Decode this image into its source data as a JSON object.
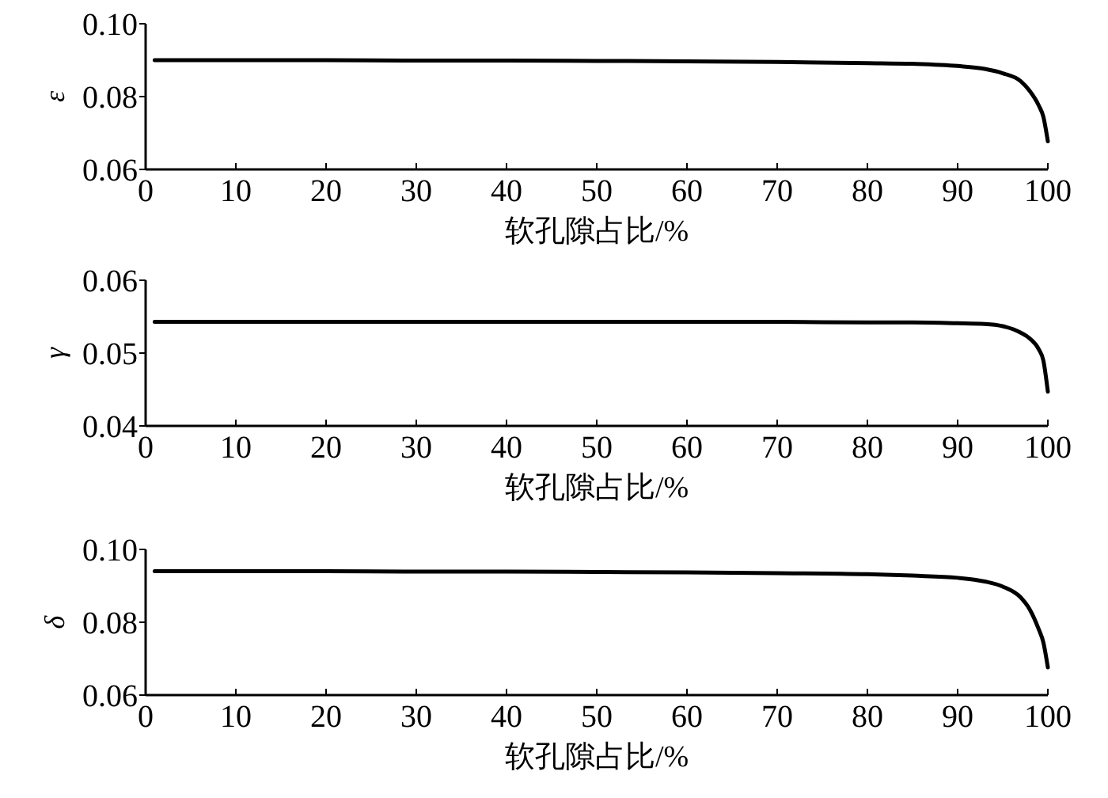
{
  "chart_data": [
    {
      "type": "line",
      "ylabel": "ε",
      "xlabel": "软孔隙占比/%",
      "x": [
        1,
        10,
        20,
        30,
        40,
        50,
        60,
        70,
        80,
        85,
        90,
        93,
        95,
        97,
        98,
        99,
        99.5,
        100
      ],
      "series": [
        {
          "color": "#000000",
          "values": [
            0.09,
            0.09,
            0.09,
            0.0899,
            0.0899,
            0.0898,
            0.0897,
            0.0895,
            0.0892,
            0.089,
            0.0884,
            0.0876,
            0.0864,
            0.0842,
            0.0815,
            0.0775,
            0.0745,
            0.0677
          ]
        }
      ],
      "xlim": [
        0,
        100
      ],
      "xticks": [
        0,
        10,
        20,
        30,
        40,
        50,
        60,
        70,
        80,
        90,
        100
      ],
      "ylim": [
        0.06,
        0.1
      ],
      "yticks": [
        0.06,
        0.08,
        {
          "value": 0.1,
          "label": "0.10"
        }
      ],
      "marker": "none",
      "line_style": "solid"
    },
    {
      "type": "line",
      "ylabel": "γ",
      "xlabel": "软孔隙占比/%",
      "x": [
        1,
        10,
        20,
        30,
        40,
        50,
        60,
        70,
        80,
        85,
        90,
        93,
        95,
        97,
        98,
        99,
        99.5,
        100
      ],
      "series": [
        {
          "color": "#000000",
          "values": [
            0.0543,
            0.0543,
            0.0543,
            0.0543,
            0.0543,
            0.0543,
            0.0543,
            0.0543,
            0.0542,
            0.0542,
            0.0541,
            0.054,
            0.0537,
            0.0528,
            0.052,
            0.0505,
            0.049,
            0.0447
          ]
        }
      ],
      "xlim": [
        0,
        100
      ],
      "xticks": [
        0,
        10,
        20,
        30,
        40,
        50,
        60,
        70,
        80,
        90,
        100
      ],
      "ylim": [
        0.04,
        0.06
      ],
      "yticks": [
        0.04,
        0.05,
        0.06
      ],
      "marker": "none",
      "line_style": "solid"
    },
    {
      "type": "line",
      "ylabel": "δ",
      "xlabel": "软孔隙占比/%",
      "x": [
        1,
        10,
        20,
        30,
        40,
        50,
        60,
        70,
        80,
        85,
        90,
        93,
        95,
        97,
        98,
        99,
        99.5,
        100
      ],
      "series": [
        {
          "color": "#000000",
          "values": [
            0.094,
            0.094,
            0.094,
            0.0939,
            0.0939,
            0.0938,
            0.0937,
            0.0935,
            0.0932,
            0.0928,
            0.0922,
            0.0912,
            0.0898,
            0.0868,
            0.0835,
            0.078,
            0.0745,
            0.0676
          ]
        }
      ],
      "xlim": [
        0,
        100
      ],
      "xticks": [
        0,
        10,
        20,
        30,
        40,
        50,
        60,
        70,
        80,
        90,
        100
      ],
      "ylim": [
        0.06,
        0.1
      ],
      "yticks": [
        0.06,
        0.08,
        {
          "value": 0.1,
          "label": "0.10"
        }
      ],
      "marker": "none",
      "line_style": "solid"
    }
  ]
}
